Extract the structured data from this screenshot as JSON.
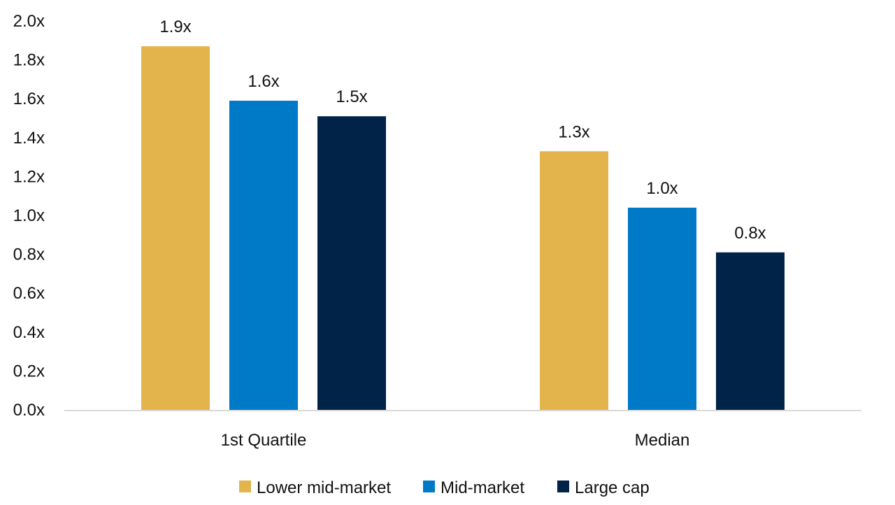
{
  "chart_data": {
    "type": "bar",
    "categories": [
      "1st Quartile",
      "Median"
    ],
    "series": [
      {
        "name": "Lower mid-market",
        "color": "#E3B34C",
        "values": [
          1.87,
          1.33
        ],
        "labels": [
          "1.9x",
          "1.3x"
        ]
      },
      {
        "name": "Mid-market",
        "color": "#0079C6",
        "values": [
          1.59,
          1.04
        ],
        "labels": [
          "1.6x",
          "1.0x"
        ]
      },
      {
        "name": "Large cap",
        "color": "#002347",
        "values": [
          1.51,
          0.81
        ],
        "labels": [
          "1.5x",
          "0.8x"
        ]
      }
    ],
    "ylim": [
      0,
      2.0
    ],
    "yticks": [
      0.0,
      0.2,
      0.4,
      0.6,
      0.8,
      1.0,
      1.2,
      1.4,
      1.6,
      1.8,
      2.0
    ],
    "ytick_labels": [
      "0.0x",
      "0.2x",
      "0.4x",
      "0.6x",
      "0.8x",
      "1.0x",
      "1.2x",
      "1.4x",
      "1.6x",
      "1.8x",
      "2.0x"
    ],
    "grid": false,
    "legend_position": "bottom-center",
    "axis_color": "#D9D9D9"
  }
}
